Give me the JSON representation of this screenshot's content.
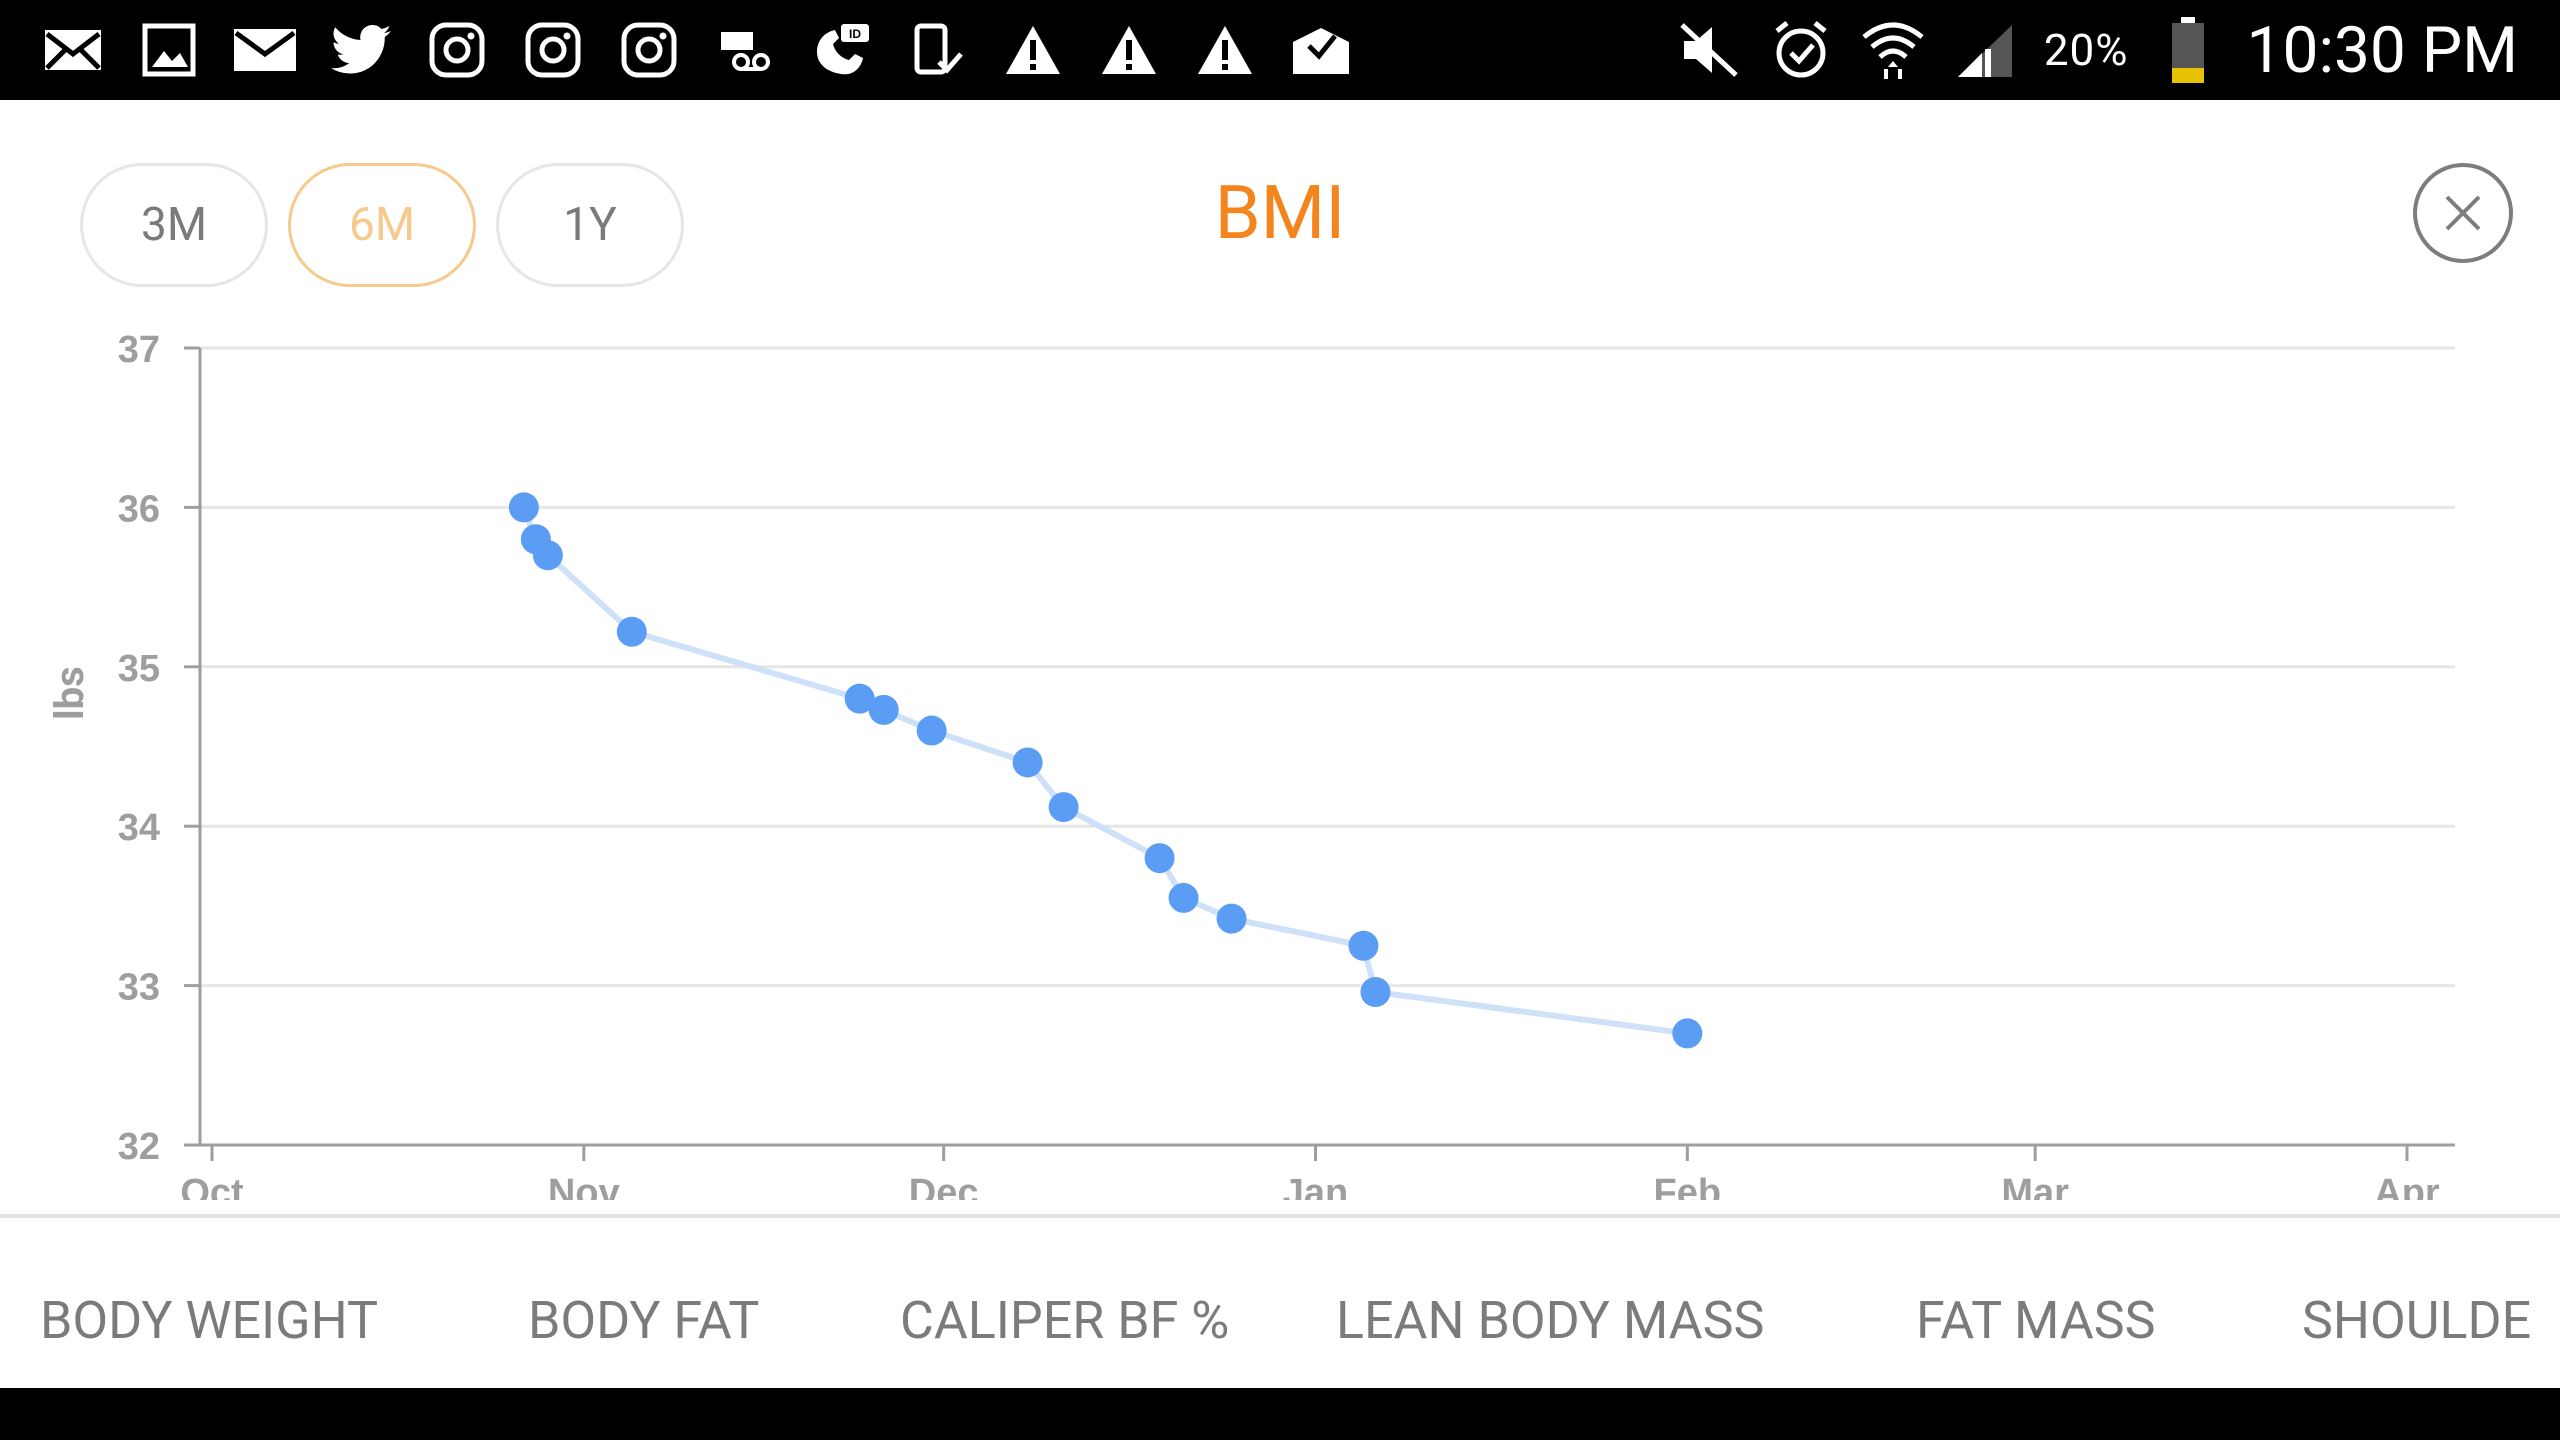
{
  "status_bar": {
    "left_icons": [
      "email-icon",
      "gallery-icon",
      "mail-icon",
      "twitter-icon",
      "instagram-icon",
      "instagram-icon",
      "instagram-icon",
      "voicemail-icon",
      "caller-id-icon",
      "phone-check-icon",
      "warning-icon",
      "warning-icon",
      "warning-icon",
      "mail-check-icon"
    ],
    "right_icons": [
      "mute-icon",
      "alarm-icon",
      "wifi-icon",
      "signal-icon",
      "battery-icon"
    ],
    "battery": "20%",
    "time": "10:30 PM"
  },
  "header": {
    "ranges": [
      "3M",
      "6M",
      "1Y"
    ],
    "selected_range": "6M",
    "title": "BMI",
    "close_icon": "close-icon"
  },
  "colors": {
    "accent": "#f4841c",
    "selected_pill": "#f6c98d",
    "point": "#5b9cf5",
    "line": "#cfe1f8"
  },
  "chart_data": {
    "type": "line",
    "title": "BMI",
    "xlabel": "",
    "ylabel": "lbs",
    "ylim": [
      32,
      37
    ],
    "xlim": [
      "Oct",
      "Apr"
    ],
    "x_ticks": [
      "Oct",
      "Nov",
      "Dec",
      "Jan",
      "Feb",
      "Mar",
      "Apr"
    ],
    "y_ticks": [
      37,
      36,
      35,
      34,
      33,
      32
    ],
    "grid": true,
    "series": [
      {
        "points": [
          {
            "x": "2015-10-27",
            "y": 36.0
          },
          {
            "x": "2015-10-28",
            "y": 35.8
          },
          {
            "x": "2015-10-29",
            "y": 35.7
          },
          {
            "x": "2015-11-05",
            "y": 35.22
          },
          {
            "x": "2015-11-24",
            "y": 34.8
          },
          {
            "x": "2015-11-26",
            "y": 34.73
          },
          {
            "x": "2015-11-30",
            "y": 34.6
          },
          {
            "x": "2015-12-08",
            "y": 34.4
          },
          {
            "x": "2015-12-11",
            "y": 34.12
          },
          {
            "x": "2015-12-19",
            "y": 33.8
          },
          {
            "x": "2015-12-21",
            "y": 33.55
          },
          {
            "x": "2015-12-25",
            "y": 33.42
          },
          {
            "x": "2016-01-05",
            "y": 33.25
          },
          {
            "x": "2016-01-06",
            "y": 32.96
          },
          {
            "x": "2016-02-01",
            "y": 32.7
          }
        ]
      }
    ]
  },
  "tabs": [
    "BODY WEIGHT",
    "BODY FAT",
    "CALIPER BF %",
    "LEAN BODY MASS",
    "FAT MASS",
    "SHOULDE"
  ]
}
